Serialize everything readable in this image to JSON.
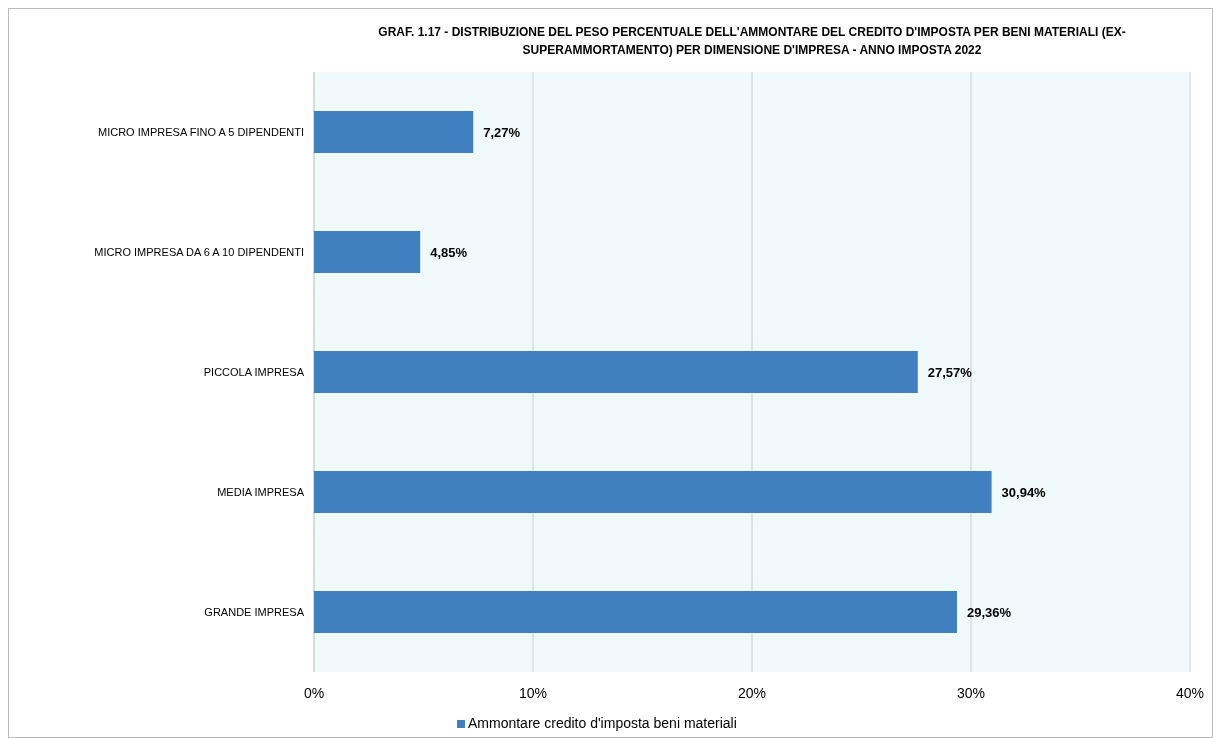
{
  "chart_data": {
    "type": "bar",
    "orientation": "horizontal",
    "title": "GRAF. 1.17  - DISTRIBUZIONE DEL PESO PERCENTUALE DELL'AMMONTARE DEL CREDITO D'IMPOSTA PER BENI MATERIALI (EX-SUPERAMMORTAMENTO) PER DIMENSIONE D'IMPRESA - ANNO IMPOSTA 2022",
    "categories": [
      "MICRO IMPRESA FINO A 5 DIPENDENTI",
      "MICRO IMPRESA DA 6 A 10 DIPENDENTI",
      "PICCOLA IMPRESA",
      "MEDIA IMPRESA",
      "GRANDE IMPRESA"
    ],
    "series": [
      {
        "name": "Ammontare credito d'imposta beni materiali",
        "color": "#4080c0",
        "values": [
          7.27,
          4.85,
          27.57,
          30.94,
          29.36
        ],
        "value_labels": [
          "7,27%",
          "4,85%",
          "27,57%",
          "30,94%",
          "29,36%"
        ]
      }
    ],
    "xlim": [
      0,
      40
    ],
    "xticks": [
      {
        "value": 0,
        "label": "0%"
      },
      {
        "value": 10,
        "label": "10%"
      },
      {
        "value": 20,
        "label": "20%"
      },
      {
        "value": 30,
        "label": "30%"
      },
      {
        "value": 40,
        "label": "40%"
      }
    ],
    "grid": "x",
    "legend": "bottom"
  }
}
